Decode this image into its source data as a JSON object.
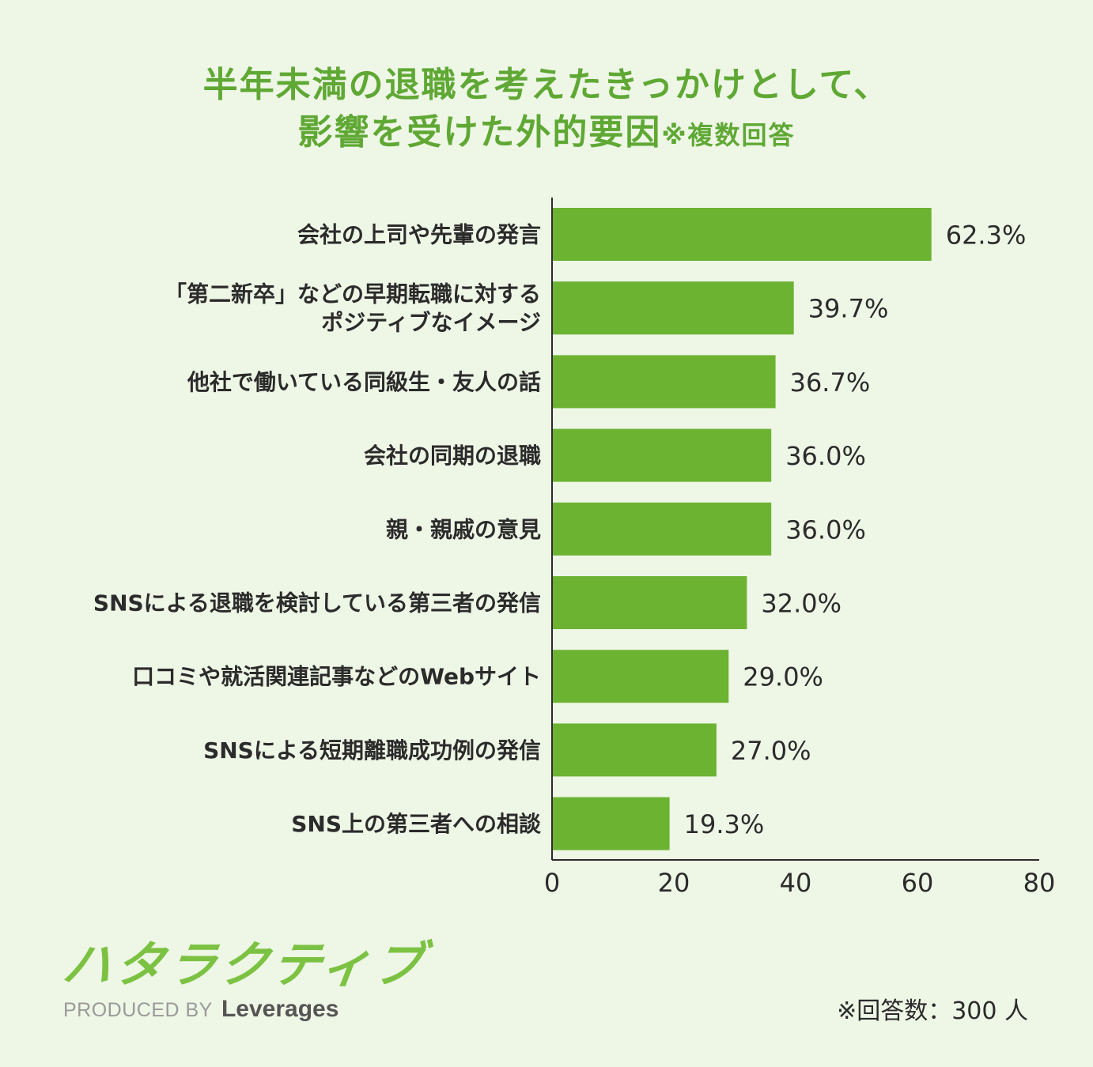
{
  "title": {
    "line1": "半年未満の退職を考えたきっかけとして、",
    "line2": "影響を受けた外的要因",
    "note": "※複数回答"
  },
  "colors": {
    "bar": "#6db332",
    "title": "#5fa834",
    "text": "#2b2b2b",
    "background": "#eef6e6"
  },
  "chart_data": {
    "type": "bar",
    "orientation": "horizontal",
    "categories": [
      [
        "会社の上司や先輩の発言"
      ],
      [
        "「第二新卒」などの早期転職に対する",
        "ポジティブなイメージ"
      ],
      [
        "他社で働いている同級生・友人の話"
      ],
      [
        "会社の同期の退職"
      ],
      [
        "親・親戚の意見"
      ],
      [
        "SNSによる退職を検討している第三者の発信"
      ],
      [
        "口コミや就活関連記事などのWebサイト"
      ],
      [
        "SNSによる短期離職成功例の発信"
      ],
      [
        "SNS上の第三者への相談"
      ]
    ],
    "values": [
      62.3,
      39.7,
      36.7,
      36.0,
      36.0,
      32.0,
      29.0,
      27.0,
      19.3
    ],
    "value_labels": [
      "62.3%",
      "39.7%",
      "36.7%",
      "36.0%",
      "36.0%",
      "32.0%",
      "29.0%",
      "27.0%",
      "19.3%"
    ],
    "xlim": [
      0,
      80
    ],
    "xticks": [
      0,
      20,
      40,
      60,
      80
    ],
    "grid": false
  },
  "logo": {
    "mark": "ハタラクティブ",
    "produced_by": "PRODUCED BY",
    "brand": "Leverages"
  },
  "footnote": "※回答数：300 人"
}
